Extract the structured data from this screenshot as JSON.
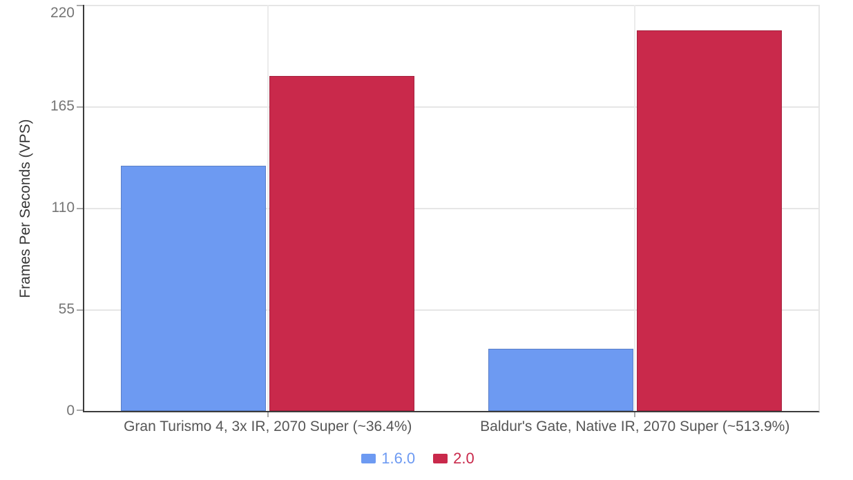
{
  "chart_data": {
    "type": "bar",
    "title": "",
    "ylabel": "Frames Per Seconds (VPS)",
    "xlabel": "",
    "ylim": [
      0,
      220
    ],
    "yticks": [
      0,
      55,
      110,
      165,
      220
    ],
    "grid": true,
    "legend_position": "bottom",
    "categories": [
      "Gran Turismo 4, 3x IR, 2070 Super (~36.4%)",
      "Baldur's Gate, Native IR, 2070 Super (~513.9%)"
    ],
    "series": [
      {
        "name": "1.6.0",
        "color": "#6d9af2",
        "values": [
          133,
          33.6
        ]
      },
      {
        "name": "2.0",
        "color": "#c9294b",
        "values": [
          181.4,
          206.3
        ]
      }
    ],
    "colors": {
      "background": "#ffffff",
      "axis_line": "#3b3b3b",
      "gridline": "#e6e6e6",
      "tick_label": "#757575",
      "category_label": "#565656",
      "axis_title": "#363636"
    }
  }
}
